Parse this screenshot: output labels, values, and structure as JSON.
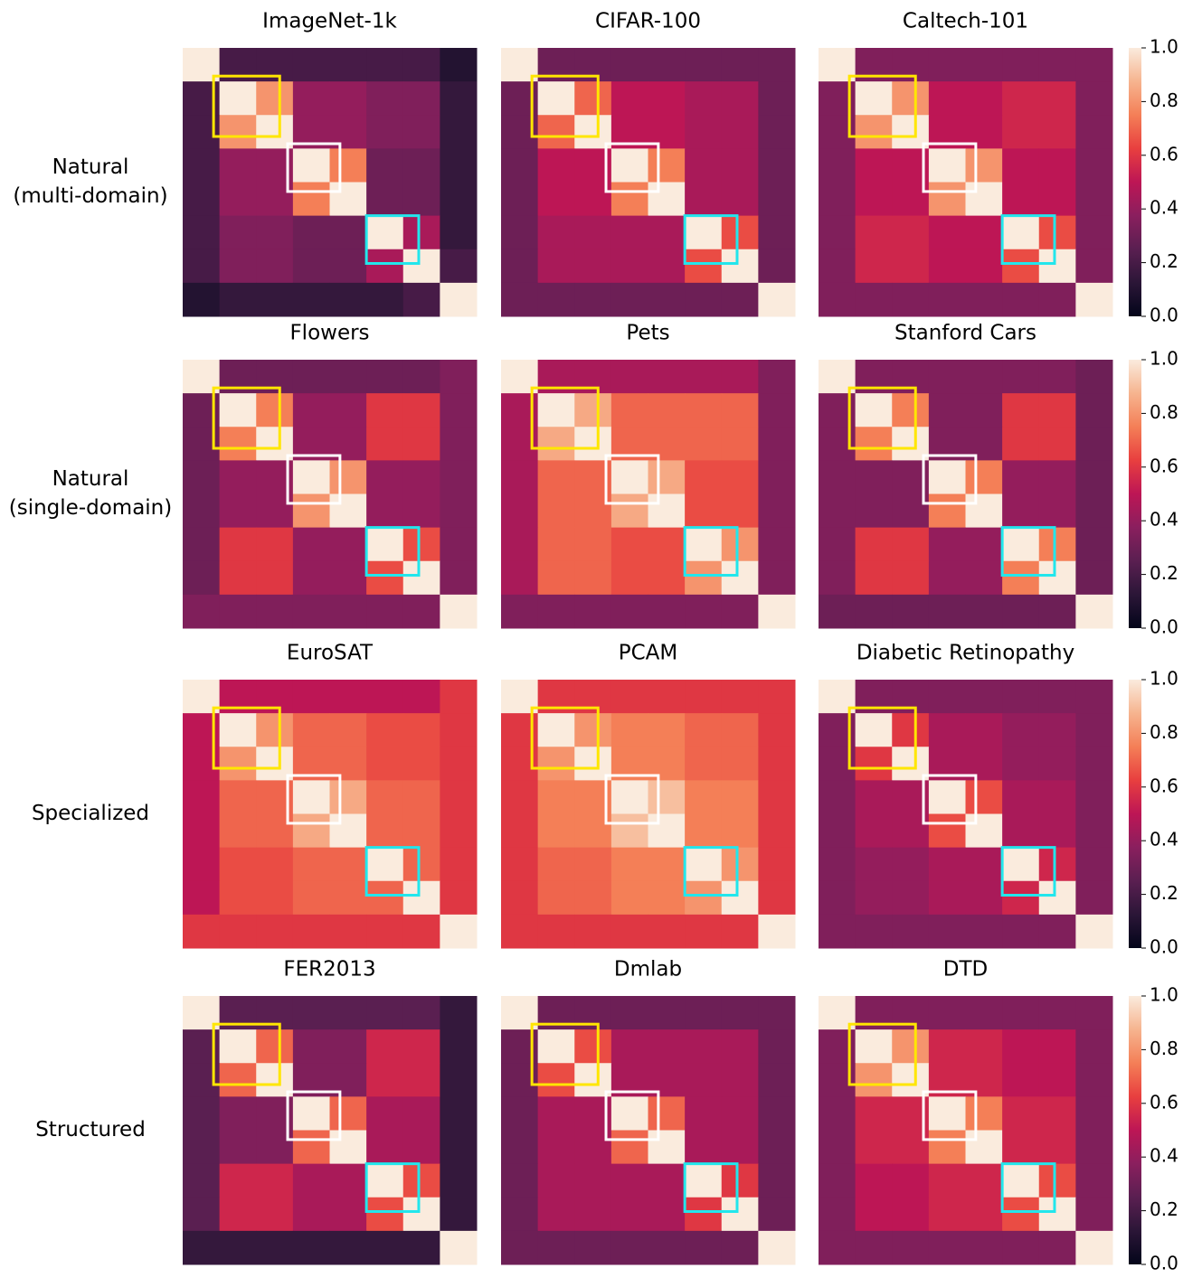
{
  "row_labels": [
    [
      "Natural",
      "(multi-domain)"
    ],
    [
      "Natural",
      "(single-domain)"
    ],
    [
      "Specialized"
    ],
    [
      "Structured"
    ]
  ],
  "colorbar": {
    "clim": [
      0,
      1
    ],
    "ticks": [
      {
        "value": 0,
        "label": "0.0"
      },
      {
        "value": 0.2,
        "label": "0.2"
      },
      {
        "value": 0.4,
        "label": "0.4"
      },
      {
        "value": 0.6,
        "label": "0.6"
      },
      {
        "value": 0.8,
        "label": "0.8"
      },
      {
        "value": 1,
        "label": "1.0"
      }
    ],
    "colormap": [
      "#03051a",
      "#2b1637",
      "#5a1f51",
      "#8a1f5e",
      "#bd1655",
      "#e83f3f",
      "#f47f57",
      "#f6b48f",
      "#faebdd"
    ]
  },
  "chart_data": [
    {
      "type": "heatmap",
      "title": "ImageNet-1k",
      "values": [
        [
          1,
          0.2,
          0.2,
          0.2,
          0.2,
          0.2,
          0.2,
          0.1
        ],
        [
          0.2,
          1,
          0.8,
          0.4,
          0.4,
          0.35,
          0.35,
          0.15
        ],
        [
          0.2,
          0.8,
          1,
          0.4,
          0.4,
          0.35,
          0.35,
          0.15
        ],
        [
          0.2,
          0.4,
          0.4,
          1,
          0.75,
          0.3,
          0.3,
          0.15
        ],
        [
          0.2,
          0.4,
          0.4,
          0.75,
          1,
          0.3,
          0.3,
          0.15
        ],
        [
          0.2,
          0.35,
          0.35,
          0.3,
          0.3,
          1,
          0.45,
          0.15
        ],
        [
          0.2,
          0.35,
          0.35,
          0.3,
          0.3,
          0.45,
          1,
          0.2
        ],
        [
          0.1,
          0.15,
          0.15,
          0.15,
          0.15,
          0.15,
          0.2,
          1
        ]
      ]
    },
    {
      "type": "heatmap",
      "title": "CIFAR-100",
      "values": [
        [
          1,
          0.3,
          0.3,
          0.3,
          0.3,
          0.3,
          0.3,
          0.3
        ],
        [
          0.3,
          1,
          0.7,
          0.5,
          0.5,
          0.45,
          0.45,
          0.3
        ],
        [
          0.3,
          0.7,
          1,
          0.5,
          0.5,
          0.45,
          0.45,
          0.3
        ],
        [
          0.3,
          0.5,
          0.5,
          1,
          0.75,
          0.45,
          0.45,
          0.3
        ],
        [
          0.3,
          0.5,
          0.5,
          0.75,
          1,
          0.45,
          0.45,
          0.3
        ],
        [
          0.3,
          0.45,
          0.45,
          0.45,
          0.45,
          1,
          0.65,
          0.3
        ],
        [
          0.3,
          0.45,
          0.45,
          0.45,
          0.45,
          0.65,
          1,
          0.3
        ],
        [
          0.3,
          0.3,
          0.3,
          0.3,
          0.3,
          0.3,
          0.3,
          1
        ]
      ]
    },
    {
      "type": "heatmap",
      "title": "Caltech-101",
      "values": [
        [
          1,
          0.35,
          0.35,
          0.35,
          0.35,
          0.35,
          0.35,
          0.35
        ],
        [
          0.35,
          1,
          0.8,
          0.5,
          0.5,
          0.55,
          0.55,
          0.35
        ],
        [
          0.35,
          0.8,
          1,
          0.5,
          0.5,
          0.55,
          0.55,
          0.35
        ],
        [
          0.35,
          0.5,
          0.5,
          1,
          0.8,
          0.5,
          0.5,
          0.35
        ],
        [
          0.35,
          0.5,
          0.5,
          0.8,
          1,
          0.5,
          0.5,
          0.35
        ],
        [
          0.35,
          0.55,
          0.55,
          0.5,
          0.5,
          1,
          0.65,
          0.35
        ],
        [
          0.35,
          0.55,
          0.55,
          0.5,
          0.5,
          0.65,
          1,
          0.35
        ],
        [
          0.35,
          0.35,
          0.35,
          0.35,
          0.35,
          0.35,
          0.35,
          1
        ]
      ]
    },
    {
      "type": "heatmap",
      "title": "Flowers",
      "values": [
        [
          1,
          0.3,
          0.3,
          0.3,
          0.3,
          0.3,
          0.3,
          0.35
        ],
        [
          0.3,
          1,
          0.75,
          0.4,
          0.4,
          0.6,
          0.6,
          0.35
        ],
        [
          0.3,
          0.75,
          1,
          0.4,
          0.4,
          0.6,
          0.6,
          0.35
        ],
        [
          0.3,
          0.4,
          0.4,
          1,
          0.8,
          0.4,
          0.4,
          0.35
        ],
        [
          0.3,
          0.4,
          0.4,
          0.8,
          1,
          0.4,
          0.4,
          0.35
        ],
        [
          0.3,
          0.6,
          0.6,
          0.4,
          0.4,
          1,
          0.65,
          0.35
        ],
        [
          0.3,
          0.6,
          0.6,
          0.4,
          0.4,
          0.65,
          1,
          0.35
        ],
        [
          0.35,
          0.35,
          0.35,
          0.35,
          0.35,
          0.35,
          0.35,
          1
        ]
      ]
    },
    {
      "type": "heatmap",
      "title": "Pets",
      "values": [
        [
          1,
          0.45,
          0.45,
          0.45,
          0.45,
          0.45,
          0.45,
          0.35
        ],
        [
          0.45,
          1,
          0.85,
          0.7,
          0.7,
          0.7,
          0.7,
          0.35
        ],
        [
          0.45,
          0.85,
          1,
          0.7,
          0.7,
          0.7,
          0.7,
          0.35
        ],
        [
          0.45,
          0.7,
          0.7,
          1,
          0.85,
          0.65,
          0.65,
          0.35
        ],
        [
          0.45,
          0.7,
          0.7,
          0.85,
          1,
          0.65,
          0.65,
          0.35
        ],
        [
          0.45,
          0.7,
          0.7,
          0.65,
          0.65,
          1,
          0.8,
          0.35
        ],
        [
          0.45,
          0.7,
          0.7,
          0.65,
          0.65,
          0.8,
          1,
          0.35
        ],
        [
          0.35,
          0.35,
          0.35,
          0.35,
          0.35,
          0.35,
          0.35,
          1
        ]
      ]
    },
    {
      "type": "heatmap",
      "title": "Stanford Cars",
      "values": [
        [
          1,
          0.35,
          0.35,
          0.35,
          0.35,
          0.35,
          0.35,
          0.3
        ],
        [
          0.35,
          1,
          0.75,
          0.35,
          0.35,
          0.6,
          0.6,
          0.3
        ],
        [
          0.35,
          0.75,
          1,
          0.35,
          0.35,
          0.6,
          0.6,
          0.3
        ],
        [
          0.35,
          0.35,
          0.35,
          1,
          0.75,
          0.4,
          0.4,
          0.3
        ],
        [
          0.35,
          0.35,
          0.35,
          0.75,
          1,
          0.4,
          0.4,
          0.3
        ],
        [
          0.35,
          0.6,
          0.6,
          0.4,
          0.4,
          1,
          0.75,
          0.3
        ],
        [
          0.35,
          0.6,
          0.6,
          0.4,
          0.4,
          0.75,
          1,
          0.3
        ],
        [
          0.3,
          0.3,
          0.3,
          0.3,
          0.3,
          0.3,
          0.3,
          1
        ]
      ]
    },
    {
      "type": "heatmap",
      "title": "EuroSAT",
      "values": [
        [
          1,
          0.5,
          0.5,
          0.5,
          0.5,
          0.5,
          0.5,
          0.6
        ],
        [
          0.5,
          1,
          0.8,
          0.7,
          0.7,
          0.65,
          0.65,
          0.6
        ],
        [
          0.5,
          0.8,
          1,
          0.7,
          0.7,
          0.65,
          0.65,
          0.6
        ],
        [
          0.5,
          0.7,
          0.7,
          1,
          0.85,
          0.7,
          0.7,
          0.6
        ],
        [
          0.5,
          0.7,
          0.7,
          0.85,
          1,
          0.7,
          0.7,
          0.6
        ],
        [
          0.5,
          0.65,
          0.65,
          0.7,
          0.7,
          1,
          0.7,
          0.6
        ],
        [
          0.5,
          0.65,
          0.65,
          0.7,
          0.7,
          0.7,
          1,
          0.6
        ],
        [
          0.6,
          0.6,
          0.6,
          0.6,
          0.6,
          0.6,
          0.6,
          1
        ]
      ]
    },
    {
      "type": "heatmap",
      "title": "PCAM",
      "values": [
        [
          1,
          0.6,
          0.6,
          0.6,
          0.6,
          0.6,
          0.6,
          0.6
        ],
        [
          0.6,
          1,
          0.8,
          0.75,
          0.75,
          0.7,
          0.7,
          0.6
        ],
        [
          0.6,
          0.8,
          1,
          0.75,
          0.75,
          0.7,
          0.7,
          0.6
        ],
        [
          0.6,
          0.75,
          0.75,
          1,
          0.9,
          0.75,
          0.75,
          0.6
        ],
        [
          0.6,
          0.75,
          0.75,
          0.9,
          1,
          0.75,
          0.75,
          0.6
        ],
        [
          0.6,
          0.7,
          0.7,
          0.75,
          0.75,
          1,
          0.8,
          0.6
        ],
        [
          0.6,
          0.7,
          0.7,
          0.75,
          0.75,
          0.8,
          1,
          0.6
        ],
        [
          0.6,
          0.6,
          0.6,
          0.6,
          0.6,
          0.6,
          0.6,
          1
        ]
      ]
    },
    {
      "type": "heatmap",
      "title": "Diabetic Retinopathy",
      "values": [
        [
          1,
          0.35,
          0.35,
          0.35,
          0.35,
          0.35,
          0.35,
          0.35
        ],
        [
          0.35,
          1,
          0.6,
          0.45,
          0.45,
          0.4,
          0.4,
          0.35
        ],
        [
          0.35,
          0.6,
          1,
          0.45,
          0.45,
          0.4,
          0.4,
          0.35
        ],
        [
          0.35,
          0.45,
          0.45,
          1,
          0.65,
          0.45,
          0.45,
          0.35
        ],
        [
          0.35,
          0.45,
          0.45,
          0.65,
          1,
          0.45,
          0.45,
          0.35
        ],
        [
          0.35,
          0.4,
          0.4,
          0.45,
          0.45,
          1,
          0.55,
          0.35
        ],
        [
          0.35,
          0.4,
          0.4,
          0.45,
          0.45,
          0.55,
          1,
          0.35
        ],
        [
          0.35,
          0.35,
          0.35,
          0.35,
          0.35,
          0.35,
          0.35,
          1
        ]
      ]
    },
    {
      "type": "heatmap",
      "title": "FER2013",
      "values": [
        [
          1,
          0.25,
          0.25,
          0.25,
          0.25,
          0.25,
          0.25,
          0.15
        ],
        [
          0.25,
          1,
          0.7,
          0.35,
          0.35,
          0.55,
          0.55,
          0.15
        ],
        [
          0.25,
          0.7,
          1,
          0.35,
          0.35,
          0.55,
          0.55,
          0.15
        ],
        [
          0.25,
          0.35,
          0.35,
          1,
          0.7,
          0.45,
          0.45,
          0.15
        ],
        [
          0.25,
          0.35,
          0.35,
          0.7,
          1,
          0.45,
          0.45,
          0.15
        ],
        [
          0.25,
          0.55,
          0.55,
          0.45,
          0.45,
          1,
          0.65,
          0.15
        ],
        [
          0.25,
          0.55,
          0.55,
          0.45,
          0.45,
          0.65,
          1,
          0.15
        ],
        [
          0.15,
          0.15,
          0.15,
          0.15,
          0.15,
          0.15,
          0.15,
          1
        ]
      ]
    },
    {
      "type": "heatmap",
      "title": "Dmlab",
      "values": [
        [
          1,
          0.3,
          0.3,
          0.3,
          0.3,
          0.3,
          0.3,
          0.3
        ],
        [
          0.3,
          1,
          0.65,
          0.45,
          0.45,
          0.45,
          0.45,
          0.3
        ],
        [
          0.3,
          0.65,
          1,
          0.45,
          0.45,
          0.45,
          0.45,
          0.3
        ],
        [
          0.3,
          0.45,
          0.45,
          1,
          0.7,
          0.45,
          0.45,
          0.3
        ],
        [
          0.3,
          0.45,
          0.45,
          0.7,
          1,
          0.45,
          0.45,
          0.3
        ],
        [
          0.3,
          0.45,
          0.45,
          0.45,
          0.45,
          1,
          0.6,
          0.3
        ],
        [
          0.3,
          0.45,
          0.45,
          0.45,
          0.45,
          0.6,
          1,
          0.3
        ],
        [
          0.3,
          0.3,
          0.3,
          0.3,
          0.3,
          0.3,
          0.3,
          1
        ]
      ]
    },
    {
      "type": "heatmap",
      "title": "DTD",
      "values": [
        [
          1,
          0.35,
          0.35,
          0.35,
          0.35,
          0.35,
          0.35,
          0.35
        ],
        [
          0.35,
          1,
          0.8,
          0.55,
          0.55,
          0.5,
          0.5,
          0.35
        ],
        [
          0.35,
          0.8,
          1,
          0.55,
          0.55,
          0.5,
          0.5,
          0.35
        ],
        [
          0.35,
          0.55,
          0.55,
          1,
          0.75,
          0.55,
          0.55,
          0.35
        ],
        [
          0.35,
          0.55,
          0.55,
          0.75,
          1,
          0.55,
          0.55,
          0.35
        ],
        [
          0.35,
          0.5,
          0.5,
          0.55,
          0.55,
          1,
          0.65,
          0.35
        ],
        [
          0.35,
          0.5,
          0.5,
          0.55,
          0.55,
          0.65,
          1,
          0.35
        ],
        [
          0.35,
          0.35,
          0.35,
          0.35,
          0.35,
          0.35,
          0.35,
          1
        ]
      ]
    }
  ]
}
